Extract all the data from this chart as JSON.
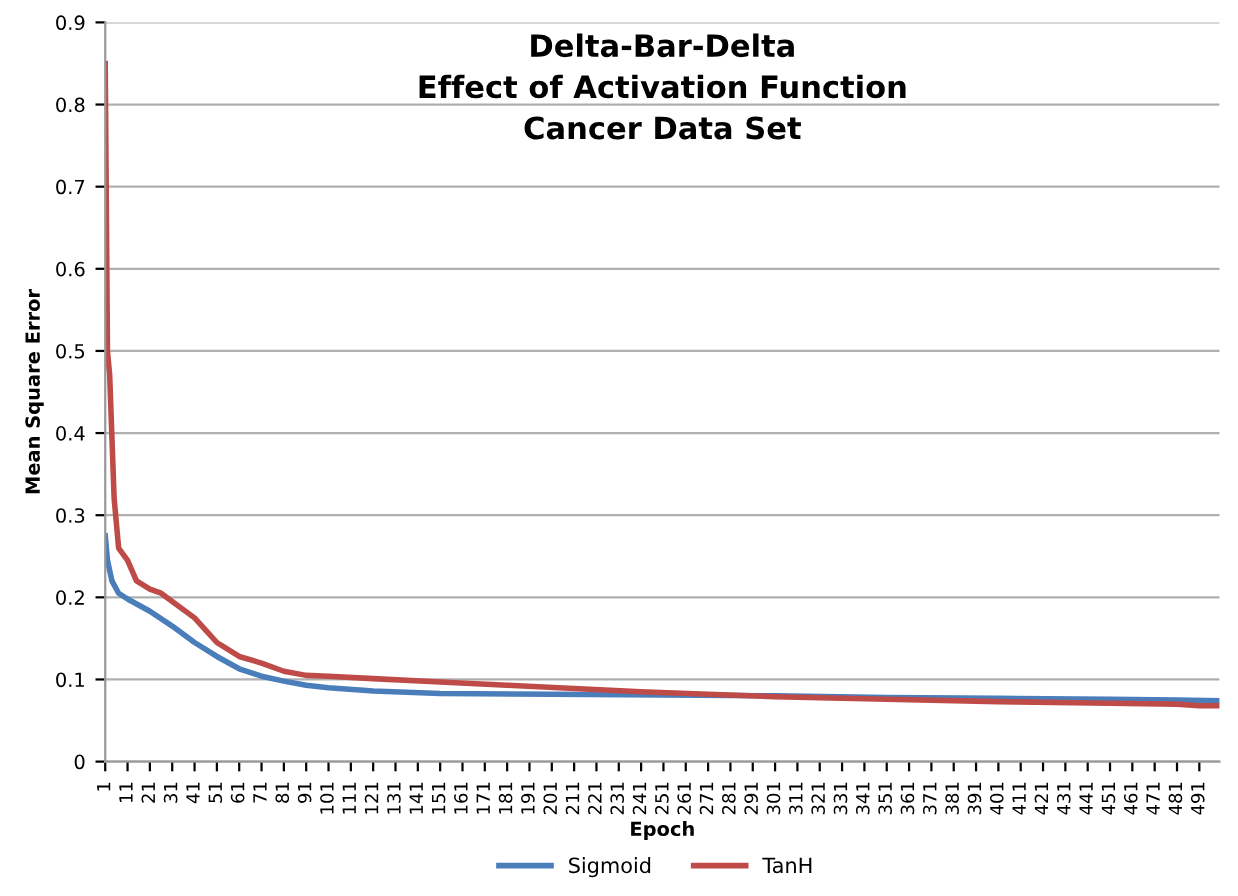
{
  "chart_data": {
    "type": "line",
    "title": "Delta-Bar-Delta\nEffect of Activation Function\nCancer Data Set",
    "xlabel": "Epoch",
    "ylabel": "Mean Square Error",
    "xlim": [
      1,
      500
    ],
    "xticks": [
      1,
      11,
      21,
      31,
      41,
      51,
      61,
      71,
      81,
      91,
      101,
      111,
      121,
      131,
      141,
      151,
      161,
      171,
      181,
      191,
      201,
      211,
      221,
      231,
      241,
      251,
      261,
      271,
      281,
      291,
      301,
      311,
      321,
      331,
      341,
      351,
      361,
      371,
      381,
      391,
      401,
      411,
      421,
      431,
      441,
      451,
      461,
      471,
      481,
      491
    ],
    "ylim": [
      0,
      0.9
    ],
    "yticks": [
      0,
      0.1,
      0.2,
      0.3,
      0.4,
      0.5,
      0.6,
      0.7,
      0.8,
      0.9
    ],
    "grid": "y",
    "legend": "bottom",
    "marker": "none",
    "line_style": "solid",
    "series": [
      {
        "name": "Sigmoid",
        "color": "#4a7ebb",
        "x": [
          1,
          2,
          4,
          7,
          11,
          21,
          31,
          41,
          51,
          61,
          71,
          81,
          91,
          101,
          121,
          151,
          201,
          251,
          301,
          351,
          401,
          451,
          481,
          500
        ],
        "values": [
          0.275,
          0.245,
          0.22,
          0.205,
          0.198,
          0.183,
          0.165,
          0.145,
          0.128,
          0.113,
          0.104,
          0.098,
          0.093,
          0.09,
          0.086,
          0.083,
          0.082,
          0.081,
          0.08,
          0.078,
          0.077,
          0.076,
          0.075,
          0.074
        ]
      },
      {
        "name": "TanH",
        "color": "#be4b48",
        "x": [
          1,
          2,
          3,
          5,
          7,
          11,
          15,
          21,
          26,
          31,
          41,
          51,
          61,
          71,
          81,
          91,
          101,
          121,
          151,
          181,
          211,
          241,
          271,
          301,
          351,
          401,
          451,
          481,
          491,
          500
        ],
        "values": [
          0.85,
          0.5,
          0.47,
          0.32,
          0.26,
          0.245,
          0.22,
          0.21,
          0.205,
          0.195,
          0.175,
          0.145,
          0.128,
          0.12,
          0.11,
          0.105,
          0.104,
          0.101,
          0.097,
          0.093,
          0.089,
          0.085,
          0.082,
          0.079,
          0.076,
          0.073,
          0.071,
          0.07,
          0.068,
          0.068
        ]
      }
    ]
  }
}
